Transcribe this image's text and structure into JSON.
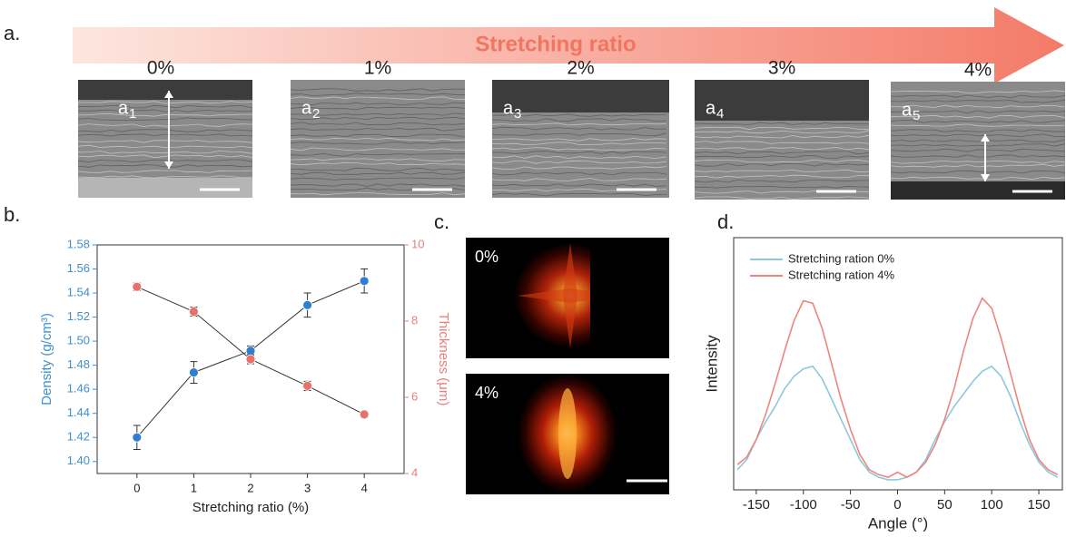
{
  "figure": {
    "panel_labels": [
      "a.",
      "b.",
      "c.",
      "d."
    ],
    "arrow_label": "Stretching ratio",
    "sem": [
      {
        "ratio": "0%",
        "letter": "a",
        "sub": "1"
      },
      {
        "ratio": "1%",
        "letter": "a",
        "sub": "2"
      },
      {
        "ratio": "2%",
        "letter": "a",
        "sub": "3"
      },
      {
        "ratio": "3%",
        "letter": "a",
        "sub": "4"
      },
      {
        "ratio": "4%",
        "letter": "a",
        "sub": "5"
      }
    ],
    "fft": [
      "0%",
      "4%"
    ]
  },
  "chart_data": [
    {
      "type": "line",
      "markers": true,
      "line_color": "#333333",
      "x": [
        0,
        1,
        2,
        3,
        4
      ],
      "xlim": [
        -0.7,
        4.7
      ],
      "xticks": [
        0,
        1,
        2,
        3,
        4
      ],
      "xlabel": "Stretching ratio (%)",
      "ylabel": "Density (g/cm³)",
      "y2label": "Thickness (μm)",
      "ylim": [
        1.39,
        1.58
      ],
      "yticks": [
        {
          "value": 1.4,
          "label": "1.40"
        },
        {
          "value": 1.42,
          "label": "1.42"
        },
        {
          "value": 1.44,
          "label": "1.44"
        },
        {
          "value": 1.46,
          "label": "1.46"
        },
        {
          "value": 1.48,
          "label": "1.48"
        },
        {
          "value": 1.5,
          "label": "1.50"
        },
        {
          "value": 1.52,
          "label": "1.52"
        },
        {
          "value": 1.54,
          "label": "1.54"
        },
        {
          "value": 1.56,
          "label": "1.56"
        },
        {
          "value": 1.58,
          "label": "1.58"
        }
      ],
      "y_color": "#3f8fd2",
      "y2lim": [
        4,
        10
      ],
      "y2ticks": [
        4,
        6,
        8,
        10
      ],
      "y2_color": "#e9807a",
      "series": [
        {
          "color": "#2f7fd0",
          "values": [
            1.42,
            1.474,
            1.492,
            1.53,
            1.55
          ],
          "errors": [
            0.01,
            0.009,
            0.004,
            0.01,
            0.01
          ]
        },
        {
          "color": "#e8706a",
          "axis": "y2",
          "values": [
            8.9,
            8.25,
            7.0,
            6.3,
            5.55
          ],
          "errors": [
            0.1,
            0.12,
            0.12,
            0.12,
            0.08
          ]
        }
      ]
    },
    {
      "type": "line",
      "x": [
        -170,
        -160,
        -150,
        -140,
        -130,
        -120,
        -110,
        -100,
        -90,
        -80,
        -70,
        -60,
        -50,
        -40,
        -30,
        -20,
        -10,
        0,
        10,
        20,
        30,
        40,
        50,
        60,
        70,
        80,
        90,
        100,
        110,
        120,
        130,
        140,
        150,
        160,
        170
      ],
      "xlim": [
        -174,
        175
      ],
      "xticks": [
        -150,
        -100,
        -50,
        0,
        50,
        100,
        150
      ],
      "xlabel": "Angle (°)",
      "ylabel": "Intensity",
      "ylim": [
        0,
        1
      ],
      "legend": "upper left",
      "series": [
        {
          "name": "Stretching ration 0%",
          "color": "#8cc9dd",
          "values": [
            0.08,
            0.12,
            0.2,
            0.27,
            0.33,
            0.4,
            0.45,
            0.48,
            0.49,
            0.44,
            0.36,
            0.28,
            0.2,
            0.12,
            0.07,
            0.05,
            0.04,
            0.04,
            0.05,
            0.07,
            0.12,
            0.2,
            0.27,
            0.33,
            0.38,
            0.43,
            0.47,
            0.49,
            0.45,
            0.37,
            0.27,
            0.18,
            0.11,
            0.07,
            0.05
          ]
        },
        {
          "name": "Stretching ration 4%",
          "color": "#ee857c",
          "values": [
            0.1,
            0.13,
            0.2,
            0.3,
            0.42,
            0.55,
            0.67,
            0.75,
            0.74,
            0.64,
            0.5,
            0.36,
            0.24,
            0.14,
            0.08,
            0.06,
            0.05,
            0.07,
            0.05,
            0.07,
            0.11,
            0.18,
            0.28,
            0.4,
            0.55,
            0.68,
            0.76,
            0.72,
            0.6,
            0.46,
            0.32,
            0.2,
            0.12,
            0.08,
            0.06
          ]
        }
      ]
    }
  ]
}
